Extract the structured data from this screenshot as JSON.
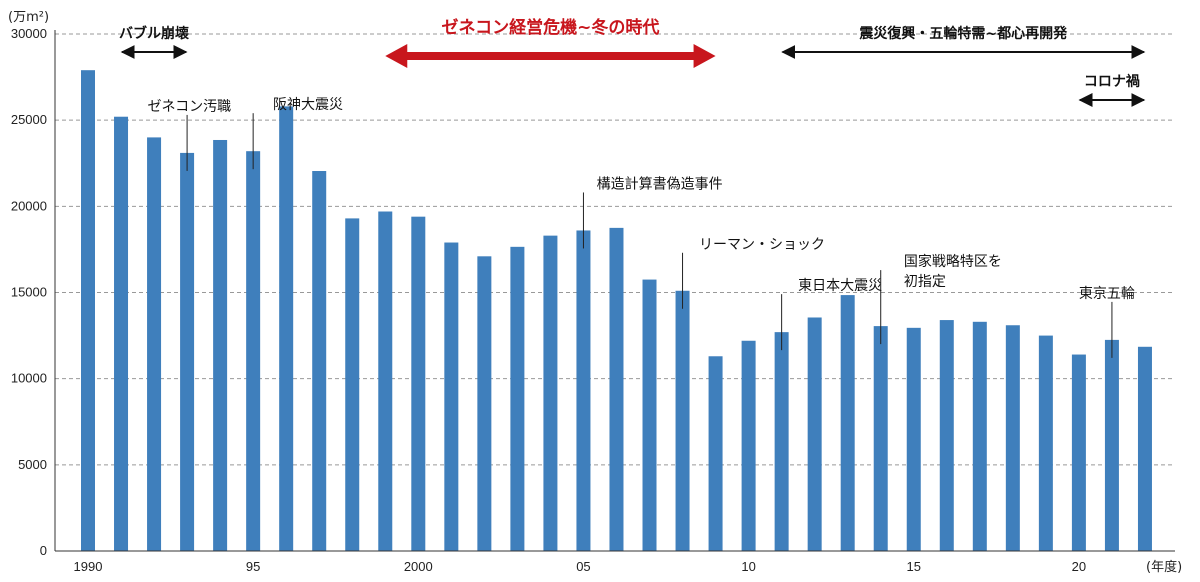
{
  "colors": {
    "bar": "#3f7fbc",
    "axis": "#333333",
    "grid": "#999999",
    "text": "#111111",
    "highlight": "#c8161d"
  },
  "chart_data": {
    "type": "bar",
    "unit_label": "(万m²)",
    "x_unit_label": "(年度)",
    "ylim": [
      0,
      30000
    ],
    "y_ticks": [
      0,
      5000,
      10000,
      15000,
      20000,
      25000,
      30000
    ],
    "y_tick_labels": [
      "0",
      "5000",
      "10000",
      "15000",
      "20000",
      "25000",
      "30000"
    ],
    "grid": true,
    "x": [
      1990,
      1991,
      1992,
      1993,
      1994,
      1995,
      1996,
      1997,
      1998,
      1999,
      2000,
      2001,
      2002,
      2003,
      2004,
      2005,
      2006,
      2007,
      2008,
      2009,
      2010,
      2011,
      2012,
      2013,
      2014,
      2015,
      2016,
      2017,
      2018,
      2019,
      2020,
      2021,
      2022
    ],
    "values": [
      27900,
      25200,
      24000,
      23100,
      23850,
      23200,
      25800,
      22050,
      19300,
      19700,
      19400,
      17900,
      17100,
      17650,
      18300,
      18600,
      18750,
      15750,
      15100,
      11300,
      12200,
      12700,
      13550,
      14850,
      13050,
      12950,
      13400,
      13300,
      13100,
      12500,
      11400,
      12250,
      11850
    ],
    "x_tick_labels": [
      {
        "year": 1990,
        "label": "1990"
      },
      {
        "year": 1995,
        "label": "95"
      },
      {
        "year": 2000,
        "label": "2000"
      },
      {
        "year": 2005,
        "label": "05"
      },
      {
        "year": 2010,
        "label": "10"
      },
      {
        "year": 2015,
        "label": "15"
      },
      {
        "year": 2020,
        "label": "20"
      }
    ],
    "annotations": [
      {
        "year": 1993,
        "lines": [
          "ゼネコン汚職"
        ],
        "text_year": 1991.8
      },
      {
        "year": 1995,
        "lines": [
          "阪神大震災"
        ],
        "text_year": 1995.6
      },
      {
        "year": 2005,
        "lines": [
          "構造計算書偽造事件"
        ],
        "text_year": 2005.4
      },
      {
        "year": 2008,
        "lines": [
          "リーマン・ショック"
        ],
        "text_year": 2008.5
      },
      {
        "year": 2011,
        "lines": [
          "東日本大震災"
        ],
        "text_year": 2011.5
      },
      {
        "year": 2014,
        "lines": [
          "国家戦略特区を",
          "初指定"
        ],
        "text_year": 2014.7
      },
      {
        "year": 2021,
        "lines": [
          "東京五輪"
        ],
        "text_year": 2020.0
      }
    ],
    "eras": [
      {
        "label": "バブル崩壊",
        "from": 1991,
        "to": 1993,
        "style": "black"
      },
      {
        "label": "ゼネコン経営危機~冬の時代",
        "from": 1999,
        "to": 2009,
        "style": "red"
      },
      {
        "label": "震災復興・五輪特需~都心再開発",
        "from": 2011,
        "to": 2022,
        "style": "black"
      },
      {
        "label": "コロナ禍",
        "from": 2020,
        "to": 2022,
        "style": "black"
      }
    ]
  }
}
